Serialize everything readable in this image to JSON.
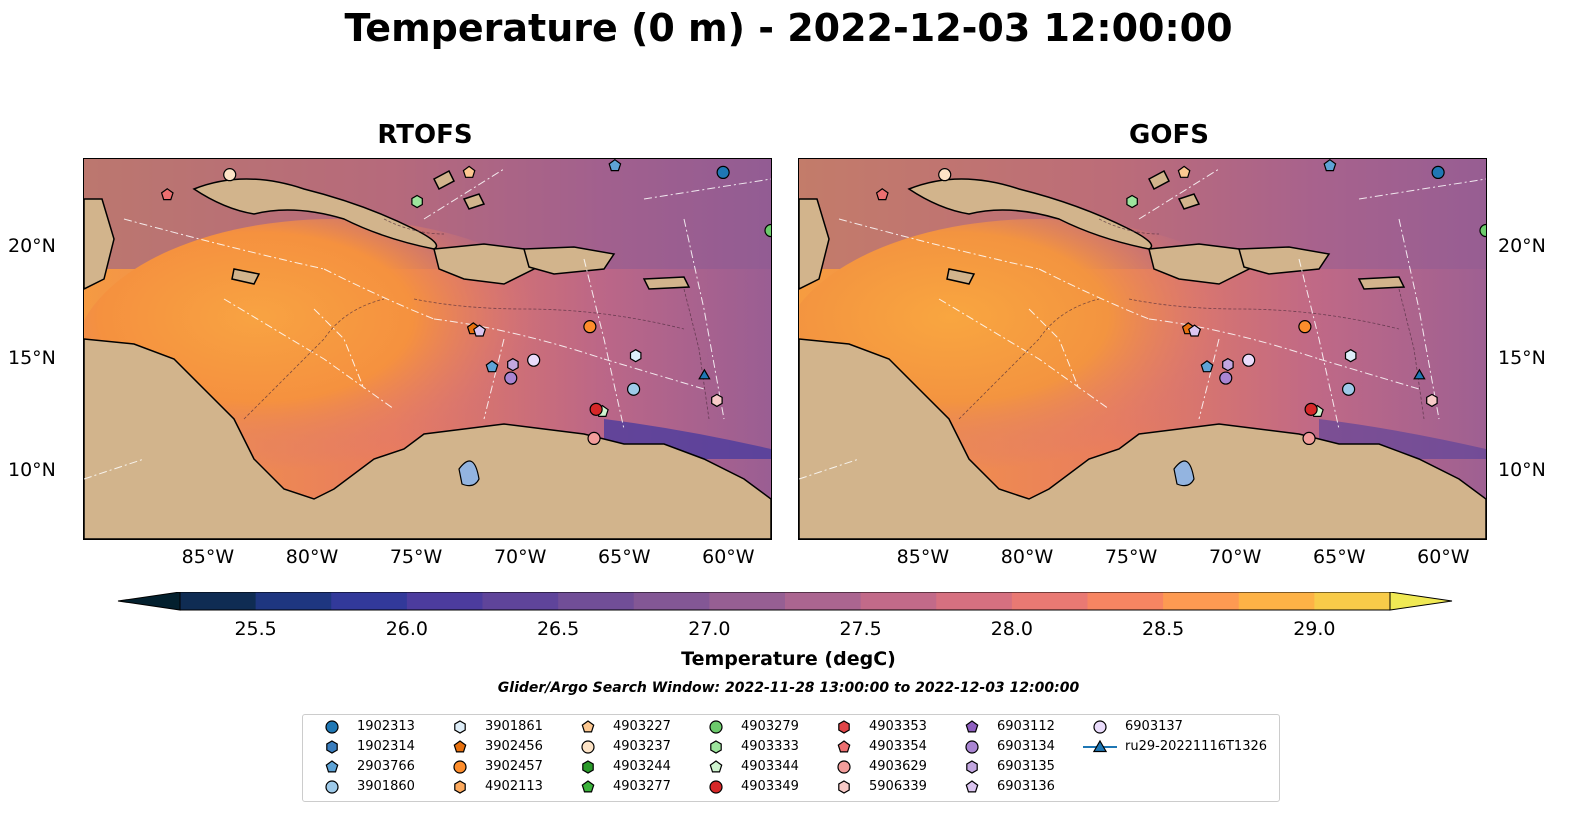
{
  "title": "Temperature (0 m) - 2022-12-03 12:00:00",
  "panels": [
    {
      "id": "rtofs",
      "title": "RTOFS"
    },
    {
      "id": "gofs",
      "title": "GOFS"
    }
  ],
  "axes": {
    "lon_ticks": [
      "85°W",
      "80°W",
      "75°W",
      "70°W",
      "65°W",
      "60°W"
    ],
    "lat_ticks": [
      "20°N",
      "15°N",
      "10°N"
    ],
    "lon_range": [
      -91,
      -58
    ],
    "lat_range": [
      7,
      24
    ]
  },
  "colorbar": {
    "label": "Temperature (degC)",
    "ticks": [
      "25.5",
      "26.0",
      "26.5",
      "27.0",
      "27.5",
      "28.0",
      "28.5",
      "29.0"
    ],
    "range": [
      25.25,
      29.25
    ],
    "colors": [
      "#03202e",
      "#0f2c53",
      "#1e3680",
      "#32399a",
      "#4c3c9e",
      "#5f449a",
      "#714e97",
      "#835795",
      "#965f93",
      "#ab6590",
      "#c26a89",
      "#d67080",
      "#e97973",
      "#f78562",
      "#fd9a52",
      "#fdb246",
      "#f8cb49",
      "#f0e954"
    ]
  },
  "search_window": "Glider/Argo Search Window: 2022-11-28 13:00:00 to 2022-12-03 12:00:00",
  "legend": [
    {
      "label": "1902313",
      "marker": "circle",
      "color": "#1f77b4"
    },
    {
      "label": "1902314",
      "marker": "hexagon",
      "color": "#3a7dbd"
    },
    {
      "label": "2903766",
      "marker": "pentagon",
      "color": "#5ea3d6"
    },
    {
      "label": "3901860",
      "marker": "circle",
      "color": "#9ecae9"
    },
    {
      "label": "3901861",
      "marker": "hexagon",
      "color": "#deeef9"
    },
    {
      "label": "3902456",
      "marker": "pentagon",
      "color": "#e6700f"
    },
    {
      "label": "3902457",
      "marker": "circle",
      "color": "#fd8d2c"
    },
    {
      "label": "4902113",
      "marker": "hexagon",
      "color": "#fdaa5e"
    },
    {
      "label": "4903227",
      "marker": "pentagon",
      "color": "#fdc891"
    },
    {
      "label": "4903237",
      "marker": "circle",
      "color": "#fde3c6"
    },
    {
      "label": "4903244",
      "marker": "hexagon",
      "color": "#2a9a2a"
    },
    {
      "label": "4903277",
      "marker": "pentagon",
      "color": "#3cb33c"
    },
    {
      "label": "4903279",
      "marker": "circle",
      "color": "#6ccb6c"
    },
    {
      "label": "4903333",
      "marker": "hexagon",
      "color": "#9de59d"
    },
    {
      "label": "4903344",
      "marker": "pentagon",
      "color": "#cff4cf"
    },
    {
      "label": "4903349",
      "marker": "circle",
      "color": "#d62728"
    },
    {
      "label": "4903353",
      "marker": "hexagon",
      "color": "#e04548"
    },
    {
      "label": "4903354",
      "marker": "pentagon",
      "color": "#ec6f70"
    },
    {
      "label": "4903629",
      "marker": "circle",
      "color": "#f29d9b"
    },
    {
      "label": "5906339",
      "marker": "hexagon",
      "color": "#f8cbc8"
    },
    {
      "label": "6903112",
      "marker": "pentagon",
      "color": "#8e5fbf"
    },
    {
      "label": "6903134",
      "marker": "circle",
      "color": "#a985d2"
    },
    {
      "label": "6903135",
      "marker": "hexagon",
      "color": "#c2a7e0"
    },
    {
      "label": "6903136",
      "marker": "pentagon",
      "color": "#dbc5f0"
    },
    {
      "label": "6903137",
      "marker": "circle",
      "color": "#eadcfb"
    },
    {
      "label": "ru29-20221116T1326",
      "marker": "triangle-line",
      "color": "#1f77b4"
    }
  ],
  "floats": [
    {
      "id": "4903237",
      "lon": -84.0,
      "lat": 23.3
    },
    {
      "id": "4903354",
      "lon": -87.0,
      "lat": 22.4
    },
    {
      "id": "4903227",
      "lon": -72.5,
      "lat": 23.4
    },
    {
      "id": "4903333",
      "lon": -75.0,
      "lat": 22.1
    },
    {
      "id": "2903766",
      "lon": -65.5,
      "lat": 23.7
    },
    {
      "id": "1902313",
      "lon": -60.3,
      "lat": 23.4
    },
    {
      "id": "4903279",
      "lon": -58.0,
      "lat": 20.8
    },
    {
      "id": "3902456",
      "lon": -72.3,
      "lat": 16.4
    },
    {
      "id": "6903136",
      "lon": -72.0,
      "lat": 16.3
    },
    {
      "id": "3902457",
      "lon": -66.7,
      "lat": 16.5
    },
    {
      "id": "6903135",
      "lon": -70.4,
      "lat": 14.8
    },
    {
      "id": "6903137",
      "lon": -69.4,
      "lat": 15.0
    },
    {
      "id": "2903766",
      "lon": -71.4,
      "lat": 14.7
    },
    {
      "id": "6903134",
      "lon": -70.5,
      "lat": 14.2
    },
    {
      "id": "3901861",
      "lon": -64.5,
      "lat": 15.2
    },
    {
      "id": "3901860",
      "lon": -64.6,
      "lat": 13.7
    },
    {
      "id": "4903344",
      "lon": -66.1,
      "lat": 12.7
    },
    {
      "id": "4903349",
      "lon": -66.4,
      "lat": 12.8
    },
    {
      "id": "4903629",
      "lon": -66.5,
      "lat": 11.5
    },
    {
      "id": "5906339",
      "lon": -60.6,
      "lat": 13.2
    },
    {
      "id": "ru29-20221116T1326",
      "lon": -61.2,
      "lat": 14.3
    }
  ]
}
